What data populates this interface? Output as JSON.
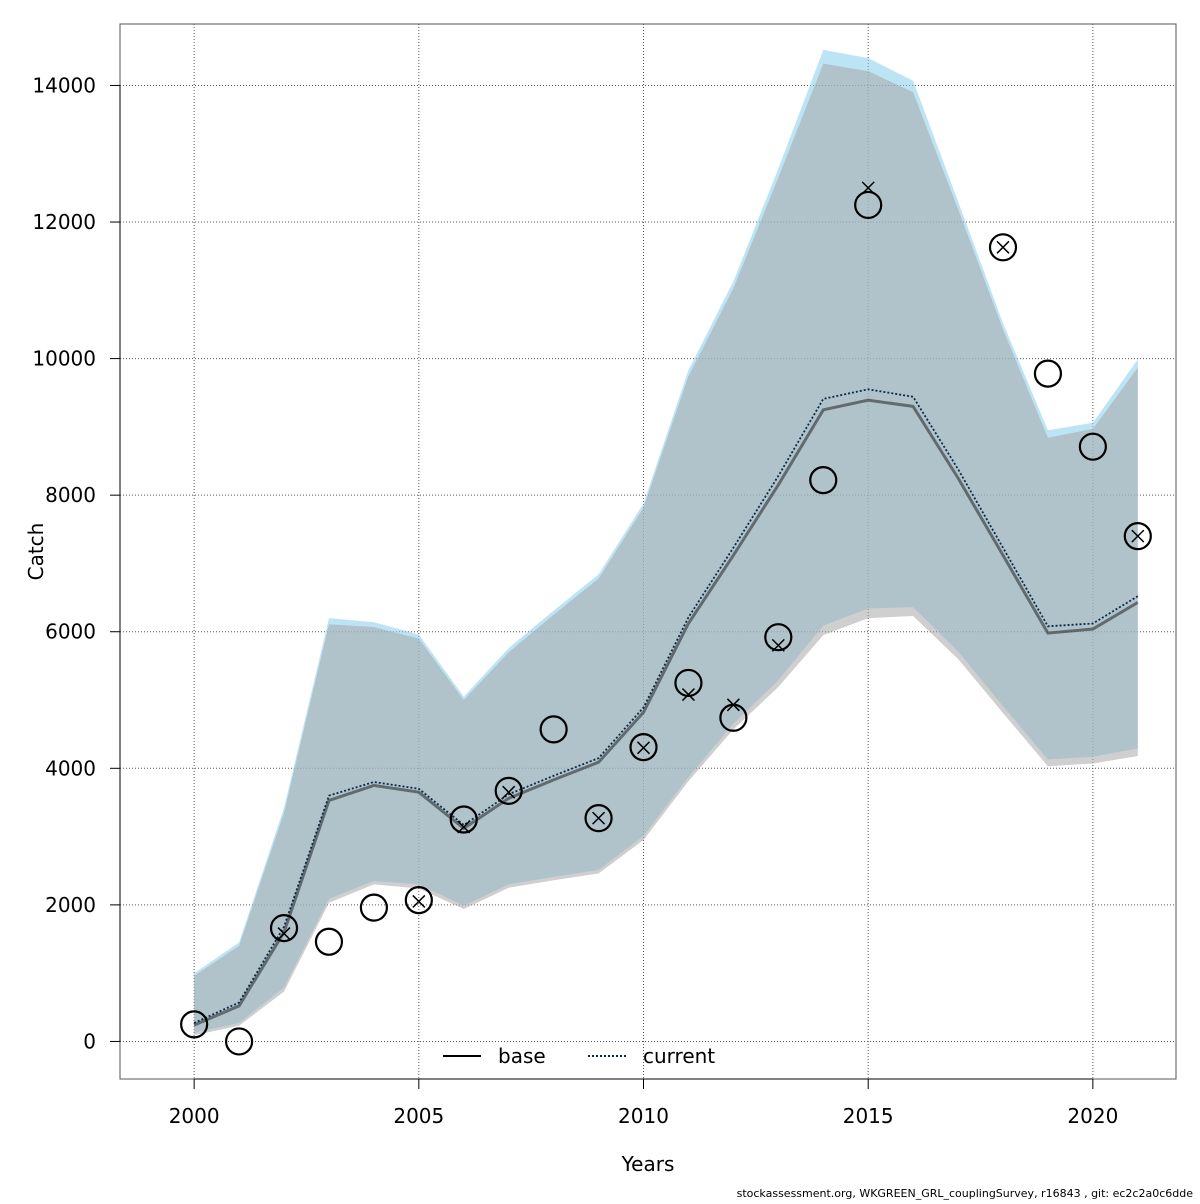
{
  "chart_data": {
    "type": "line",
    "title": "",
    "xlabel": "Years",
    "ylabel": "Catch",
    "xlim": [
      1998.35,
      2021.85
    ],
    "ylim": [
      -550,
      14900
    ],
    "x_ticks": [
      2000,
      2005,
      2010,
      2015,
      2020
    ],
    "y_ticks": [
      0,
      2000,
      4000,
      6000,
      8000,
      10000,
      12000,
      14000
    ],
    "grid": true,
    "legend_position": "bottom",
    "years": [
      2000,
      2001,
      2002,
      2003,
      2004,
      2005,
      2006,
      2007,
      2008,
      2009,
      2010,
      2011,
      2012,
      2013,
      2014,
      2015,
      2016,
      2017,
      2018,
      2019,
      2020,
      2021
    ],
    "series": [
      {
        "name": "base",
        "line_style": "solid",
        "color": "#000000",
        "band_color": "#a8a8a8",
        "values": [
          240,
          520,
          1600,
          3530,
          3750,
          3650,
          3120,
          3560,
          3830,
          4090,
          4820,
          6120,
          7120,
          8150,
          9250,
          9390,
          9300,
          8250,
          7120,
          5980,
          6040,
          6430
        ],
        "lower": [
          90,
          230,
          730,
          2030,
          2300,
          2240,
          1940,
          2250,
          2360,
          2460,
          2950,
          3810,
          4570,
          5190,
          5950,
          6200,
          6230,
          5600,
          4810,
          4030,
          4070,
          4180
        ],
        "upper": [
          960,
          1400,
          3350,
          6110,
          6070,
          5900,
          5000,
          5700,
          6250,
          6780,
          7820,
          9740,
          11030,
          12650,
          14320,
          14210,
          13900,
          12190,
          10430,
          8840,
          8970,
          9870
        ]
      },
      {
        "name": "current",
        "line_style": "dotted",
        "color": "#0d3b66",
        "band_color": "#87ceeb",
        "values": [
          270,
          570,
          1680,
          3600,
          3800,
          3700,
          3170,
          3620,
          3890,
          4150,
          4890,
          6210,
          7230,
          8280,
          9410,
          9550,
          9440,
          8380,
          7230,
          6080,
          6120,
          6520
        ],
        "lower": [
          130,
          270,
          790,
          2090,
          2350,
          2300,
          1990,
          2300,
          2410,
          2510,
          3010,
          3870,
          4650,
          5290,
          6090,
          6340,
          6360,
          5710,
          4910,
          4130,
          4170,
          4290
        ],
        "upper": [
          1000,
          1450,
          3420,
          6200,
          6140,
          5960,
          5050,
          5760,
          6310,
          6840,
          7880,
          9830,
          11130,
          12780,
          14520,
          14400,
          14070,
          12300,
          10520,
          8950,
          9060,
          9990
        ]
      }
    ],
    "observations_base": [
      {
        "x": 2000,
        "y": 250
      },
      {
        "x": 2001,
        "y": 0
      },
      {
        "x": 2002,
        "y": 1660
      },
      {
        "x": 2003,
        "y": 1460
      },
      {
        "x": 2004,
        "y": 1960
      },
      {
        "x": 2005,
        "y": 2070
      },
      {
        "x": 2006,
        "y": 3250
      },
      {
        "x": 2007,
        "y": 3670
      },
      {
        "x": 2008,
        "y": 4570
      },
      {
        "x": 2009,
        "y": 3270
      },
      {
        "x": 2010,
        "y": 4310
      },
      {
        "x": 2011,
        "y": 5250
      },
      {
        "x": 2012,
        "y": 4740
      },
      {
        "x": 2013,
        "y": 5920
      },
      {
        "x": 2014,
        "y": 8220
      },
      {
        "x": 2015,
        "y": 12250
      },
      {
        "x": 2018,
        "y": 11630
      },
      {
        "x": 2019,
        "y": 9780
      },
      {
        "x": 2020,
        "y": 8710
      },
      {
        "x": 2021,
        "y": 7400
      }
    ],
    "observations_current": [
      {
        "x": 2002,
        "y": 1580
      },
      {
        "x": 2005,
        "y": 2050
      },
      {
        "x": 2006,
        "y": 3140
      },
      {
        "x": 2007,
        "y": 3650
      },
      {
        "x": 2009,
        "y": 3270
      },
      {
        "x": 2010,
        "y": 4300
      },
      {
        "x": 2011,
        "y": 5080
      },
      {
        "x": 2012,
        "y": 4930
      },
      {
        "x": 2013,
        "y": 5800
      },
      {
        "x": 2015,
        "y": 12500
      },
      {
        "x": 2018,
        "y": 11630
      },
      {
        "x": 2021,
        "y": 7400
      }
    ]
  },
  "footer_text": "stockassessment.org, WKGREEN_GRL_couplingSurvey, r16843 , git: ec2c2a0c6dde"
}
